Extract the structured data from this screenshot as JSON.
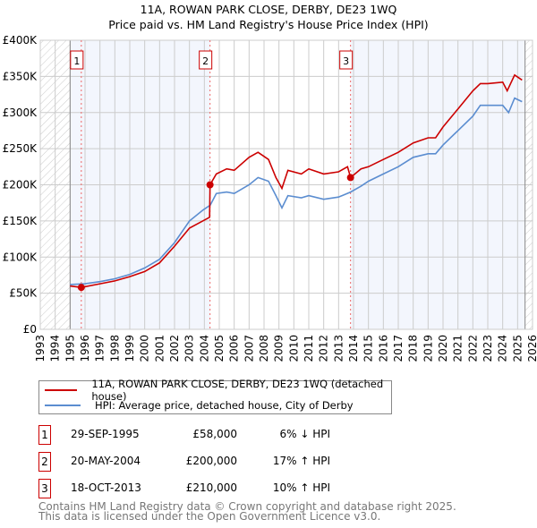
{
  "chart_data": {
    "type": "line",
    "title": "11A, ROWAN PARK CLOSE, DERBY, DE23 1WQ",
    "subtitle": "Price paid vs. HM Land Registry's House Price Index (HPI)",
    "xlim": [
      1993,
      2026
    ],
    "ylim": [
      0,
      400000
    ],
    "x_ticks": [
      "1993",
      "1994",
      "1995",
      "1996",
      "1997",
      "1998",
      "1999",
      "2000",
      "2001",
      "2002",
      "2003",
      "2004",
      "2005",
      "2006",
      "2007",
      "2008",
      "2009",
      "2010",
      "2011",
      "2012",
      "2013",
      "2014",
      "2015",
      "2016",
      "2017",
      "2018",
      "2019",
      "2020",
      "2021",
      "2022",
      "2023",
      "2024",
      "2025",
      "2026"
    ],
    "y_ticks": [
      {
        "v": 0,
        "label": "£0"
      },
      {
        "v": 50000,
        "label": "£50K"
      },
      {
        "v": 100000,
        "label": "£100K"
      },
      {
        "v": 150000,
        "label": "£150K"
      },
      {
        "v": 200000,
        "label": "£200K"
      },
      {
        "v": 250000,
        "label": "£250K"
      },
      {
        "v": 300000,
        "label": "£300K"
      },
      {
        "v": 350000,
        "label": "£350K"
      },
      {
        "v": 400000,
        "label": "£400K"
      }
    ],
    "grid": true,
    "legend_placement": "below",
    "series": [
      {
        "name": "11A, ROWAN PARK CLOSE, DERBY, DE23 1WQ (detached house)",
        "color": "#cc0000",
        "x": [
          1995,
          1995.75,
          1997,
          1998,
          1999,
          2000,
          2001,
          2002,
          2003,
          2004.35,
          2004.38,
          2004.8,
          2005.5,
          2006,
          2007,
          2007.6,
          2008.3,
          2008.8,
          2009.2,
          2009.6,
          2010.5,
          2011,
          2012,
          2013,
          2013.6,
          2013.8,
          2014.5,
          2015,
          2016,
          2017,
          2018,
          2019,
          2019.5,
          2020,
          2021,
          2022,
          2022.5,
          2023,
          2024,
          2024.3,
          2024.8,
          2025.3
        ],
        "y": [
          60000,
          58000,
          63000,
          67000,
          73000,
          80000,
          92000,
          115000,
          140000,
          155000,
          200000,
          215000,
          222000,
          220000,
          238000,
          245000,
          235000,
          210000,
          195000,
          220000,
          215000,
          222000,
          215000,
          218000,
          225000,
          210000,
          222000,
          225000,
          235000,
          245000,
          258000,
          265000,
          265000,
          280000,
          305000,
          330000,
          340000,
          340000,
          342000,
          330000,
          352000,
          345000
        ]
      },
      {
        "name": "HPI: Average price, detached house, City of Derby",
        "color": "#5b8dd0",
        "x": [
          1995,
          1996,
          1997,
          1998,
          1999,
          2000,
          2001,
          2002,
          2003,
          2003.9,
          2004.4,
          2004.8,
          2005.5,
          2006,
          2007,
          2007.6,
          2008.3,
          2008.8,
          2009.2,
          2009.6,
          2010.5,
          2011,
          2012,
          2013,
          2013.8,
          2014.5,
          2015,
          2016,
          2017,
          2018,
          2019,
          2019.5,
          2020,
          2021,
          2022,
          2022.5,
          2023,
          2024,
          2024.4,
          2024.8,
          2025.3
        ],
        "y": [
          62000,
          63000,
          66000,
          70000,
          76000,
          85000,
          97000,
          120000,
          150000,
          165000,
          172000,
          188000,
          190000,
          188000,
          200000,
          210000,
          205000,
          185000,
          168000,
          185000,
          182000,
          185000,
          180000,
          183000,
          190000,
          198000,
          205000,
          215000,
          225000,
          238000,
          243000,
          243000,
          255000,
          275000,
          295000,
          310000,
          310000,
          310000,
          300000,
          320000,
          315000
        ]
      }
    ],
    "sales": [
      {
        "label": "1",
        "x": 1995.75,
        "y": 58000,
        "date": "29-SEP-1995",
        "price": "£58,000",
        "hpi": "6% ↓ HPI"
      },
      {
        "label": "2",
        "x": 2004.38,
        "y": 200000,
        "date": "20-MAY-2004",
        "price": "£200,000",
        "hpi": "17% ↑ HPI"
      },
      {
        "label": "3",
        "x": 2013.8,
        "y": 210000,
        "date": "18-OCT-2013",
        "price": "£210,000",
        "hpi": "10% ↑ HPI"
      }
    ],
    "shading": {
      "data_start": 1995,
      "data_end": 2025.5
    }
  },
  "footer": {
    "line1": "Contains HM Land Registry data © Crown copyright and database right 2025.",
    "line2": "This data is licensed under the Open Government Licence v3.0."
  }
}
